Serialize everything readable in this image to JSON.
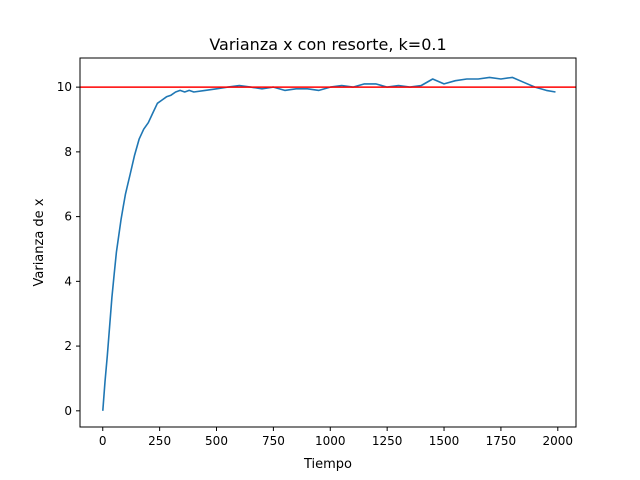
{
  "chart_data": {
    "type": "line",
    "title": "Varianza x con resorte, k=0.1",
    "xlabel": "Tiempo",
    "ylabel": "Varianza de x",
    "xlim": [
      -100,
      2080
    ],
    "ylim": [
      -0.5,
      10.9
    ],
    "xticks": [
      0,
      250,
      500,
      750,
      1000,
      1250,
      1500,
      1750,
      2000
    ],
    "yticks": [
      0,
      2,
      4,
      6,
      8,
      10
    ],
    "xtick_labels": [
      "0",
      "250",
      "500",
      "750",
      "1000",
      "1250",
      "1500",
      "1750",
      "2000"
    ],
    "ytick_labels": [
      "0",
      "2",
      "4",
      "6",
      "8",
      "10"
    ],
    "grid": false,
    "legend": "none",
    "series": [
      {
        "color": "#1f77b4",
        "x": [
          0,
          10,
          20,
          30,
          40,
          50,
          60,
          70,
          80,
          90,
          100,
          120,
          140,
          160,
          180,
          200,
          220,
          240,
          260,
          280,
          300,
          320,
          340,
          360,
          380,
          400,
          450,
          500,
          550,
          600,
          650,
          700,
          750,
          800,
          850,
          900,
          950,
          1000,
          1050,
          1100,
          1150,
          1200,
          1250,
          1300,
          1350,
          1400,
          1450,
          1500,
          1550,
          1600,
          1650,
          1700,
          1750,
          1800,
          1850,
          1900,
          1950,
          1990
        ],
        "y": [
          0,
          0.9,
          1.7,
          2.6,
          3.5,
          4.2,
          4.9,
          5.4,
          5.9,
          6.3,
          6.7,
          7.3,
          7.9,
          8.4,
          8.7,
          8.9,
          9.2,
          9.5,
          9.6,
          9.7,
          9.75,
          9.85,
          9.9,
          9.85,
          9.9,
          9.85,
          9.9,
          9.95,
          10.0,
          10.05,
          10.0,
          9.95,
          10.0,
          9.9,
          9.95,
          9.95,
          9.9,
          10.0,
          10.05,
          10.0,
          10.1,
          10.1,
          10.0,
          10.05,
          10.0,
          10.05,
          10.25,
          10.1,
          10.2,
          10.25,
          10.25,
          10.3,
          10.25,
          10.3,
          10.15,
          10.0,
          9.9,
          9.85
        ]
      }
    ],
    "hline": {
      "y": 10,
      "color": "#ff0000"
    }
  }
}
